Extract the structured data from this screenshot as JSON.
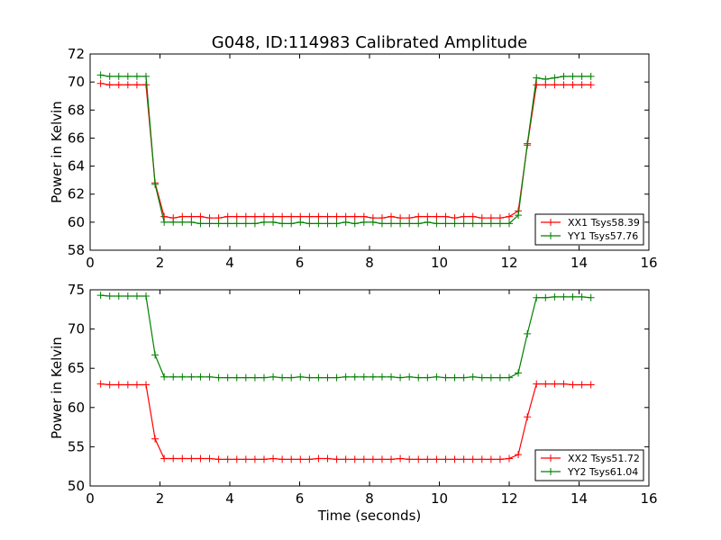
{
  "figure_title": "G048, ID:114983 Calibrated Amplitude",
  "chart_data": [
    {
      "type": "line",
      "title": "G048, ID:114983 Calibrated Amplitude",
      "xlabel": "",
      "ylabel": "Power in Kelvin",
      "xlim": [
        0,
        16
      ],
      "ylim": [
        58,
        72
      ],
      "xticks": [
        0,
        2,
        4,
        6,
        8,
        10,
        12,
        14,
        16
      ],
      "yticks": [
        58,
        60,
        62,
        64,
        66,
        68,
        70,
        72
      ],
      "grid": false,
      "legend_position": "lower-right",
      "x": [
        0.3,
        0.56,
        0.82,
        1.08,
        1.34,
        1.6,
        1.86,
        2.12,
        2.38,
        2.64,
        2.9,
        3.16,
        3.42,
        3.68,
        3.94,
        4.2,
        4.46,
        4.72,
        4.98,
        5.24,
        5.5,
        5.76,
        6.02,
        6.28,
        6.54,
        6.8,
        7.06,
        7.32,
        7.58,
        7.84,
        8.1,
        8.36,
        8.62,
        8.88,
        9.14,
        9.4,
        9.66,
        9.92,
        10.18,
        10.44,
        10.7,
        10.96,
        11.22,
        11.48,
        11.74,
        12.0,
        12.26,
        12.52,
        12.78,
        13.04,
        13.3,
        13.56,
        13.82,
        14.08,
        14.34
      ],
      "series": [
        {
          "name": "XX1 Tsys58.39",
          "color": "#ff0000",
          "values": [
            69.9,
            69.8,
            69.8,
            69.8,
            69.8,
            69.8,
            62.8,
            60.4,
            60.3,
            60.4,
            60.4,
            60.4,
            60.3,
            60.3,
            60.4,
            60.4,
            60.4,
            60.4,
            60.4,
            60.4,
            60.4,
            60.4,
            60.4,
            60.4,
            60.4,
            60.4,
            60.4,
            60.4,
            60.4,
            60.4,
            60.3,
            60.3,
            60.4,
            60.3,
            60.3,
            60.4,
            60.4,
            60.4,
            60.4,
            60.3,
            60.4,
            60.4,
            60.3,
            60.3,
            60.3,
            60.4,
            60.8,
            65.5,
            69.8,
            69.8,
            69.8,
            69.8,
            69.8,
            69.8,
            69.8
          ]
        },
        {
          "name": "YY1 Tsys57.76",
          "color": "#008000",
          "values": [
            70.5,
            70.4,
            70.4,
            70.4,
            70.4,
            70.4,
            62.7,
            60.0,
            60.0,
            60.0,
            60.0,
            59.9,
            59.9,
            59.9,
            59.9,
            59.9,
            59.9,
            59.9,
            60.0,
            60.0,
            59.9,
            59.9,
            60.0,
            59.9,
            59.9,
            59.9,
            59.9,
            60.0,
            59.9,
            60.0,
            60.0,
            59.9,
            59.9,
            59.9,
            59.9,
            59.9,
            60.0,
            59.9,
            59.9,
            59.9,
            59.9,
            59.9,
            59.9,
            59.9,
            59.9,
            59.9,
            60.5,
            65.6,
            70.3,
            70.2,
            70.3,
            70.4,
            70.4,
            70.4,
            70.4
          ]
        }
      ]
    },
    {
      "type": "line",
      "title": "",
      "xlabel": "Time (seconds)",
      "ylabel": "Power in Kelvin",
      "xlim": [
        0,
        16
      ],
      "ylim": [
        50,
        75
      ],
      "xticks": [
        0,
        2,
        4,
        6,
        8,
        10,
        12,
        14,
        16
      ],
      "yticks": [
        50,
        55,
        60,
        65,
        70,
        75
      ],
      "grid": false,
      "legend_position": "lower-right",
      "x": [
        0.3,
        0.56,
        0.82,
        1.08,
        1.34,
        1.6,
        1.86,
        2.12,
        2.38,
        2.64,
        2.9,
        3.16,
        3.42,
        3.68,
        3.94,
        4.2,
        4.46,
        4.72,
        4.98,
        5.24,
        5.5,
        5.76,
        6.02,
        6.28,
        6.54,
        6.8,
        7.06,
        7.32,
        7.58,
        7.84,
        8.1,
        8.36,
        8.62,
        8.88,
        9.14,
        9.4,
        9.66,
        9.92,
        10.18,
        10.44,
        10.7,
        10.96,
        11.22,
        11.48,
        11.74,
        12.0,
        12.26,
        12.52,
        12.78,
        13.04,
        13.3,
        13.56,
        13.82,
        14.08,
        14.34
      ],
      "series": [
        {
          "name": "XX2 Tsys51.72",
          "color": "#ff0000",
          "values": [
            63.0,
            62.9,
            62.9,
            62.9,
            62.9,
            62.9,
            56.0,
            53.5,
            53.5,
            53.5,
            53.5,
            53.5,
            53.5,
            53.4,
            53.4,
            53.4,
            53.4,
            53.4,
            53.4,
            53.5,
            53.4,
            53.4,
            53.4,
            53.4,
            53.5,
            53.5,
            53.4,
            53.4,
            53.4,
            53.4,
            53.4,
            53.4,
            53.4,
            53.5,
            53.4,
            53.4,
            53.4,
            53.4,
            53.4,
            53.4,
            53.4,
            53.4,
            53.4,
            53.4,
            53.4,
            53.5,
            54.0,
            58.8,
            63.0,
            63.0,
            63.0,
            63.0,
            62.9,
            62.9,
            62.9
          ]
        },
        {
          "name": "YY2 Tsys61.04",
          "color": "#008000",
          "values": [
            74.3,
            74.2,
            74.2,
            74.2,
            74.2,
            74.2,
            66.7,
            63.9,
            63.9,
            63.9,
            63.9,
            63.9,
            63.9,
            63.8,
            63.8,
            63.8,
            63.8,
            63.8,
            63.8,
            63.9,
            63.8,
            63.8,
            63.9,
            63.8,
            63.8,
            63.8,
            63.8,
            63.9,
            63.9,
            63.9,
            63.9,
            63.9,
            63.9,
            63.8,
            63.9,
            63.8,
            63.8,
            63.9,
            63.8,
            63.8,
            63.8,
            63.9,
            63.8,
            63.8,
            63.8,
            63.8,
            64.4,
            69.4,
            74.0,
            74.0,
            74.1,
            74.1,
            74.1,
            74.1,
            74.0
          ]
        }
      ]
    }
  ]
}
